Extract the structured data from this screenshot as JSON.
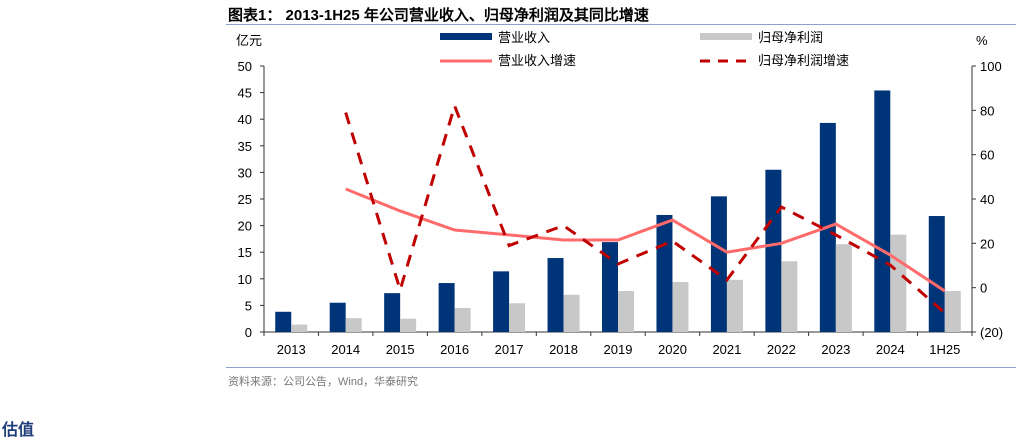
{
  "title": "图表1： 2013-1H25 年公司营业收入、归母净利润及其同比增速",
  "source": "资料来源：公司公告，Wind，华泰研究",
  "next_section": "估值",
  "chart_data": {
    "type": "bar",
    "categories": [
      "2013",
      "2014",
      "2015",
      "2016",
      "2017",
      "2018",
      "2019",
      "2020",
      "2021",
      "2022",
      "2023",
      "2024",
      "1H25"
    ],
    "left_axis": {
      "label": "亿元",
      "ylim": [
        0,
        50
      ],
      "ticks": [
        "0",
        "5",
        "10",
        "15",
        "20",
        "25",
        "30",
        "35",
        "40",
        "45",
        "50"
      ]
    },
    "right_axis": {
      "label": "%",
      "ylim": [
        -20,
        100
      ],
      "ticks": [
        "(20)",
        "0",
        "20",
        "40",
        "60",
        "80",
        "100"
      ]
    },
    "series": [
      {
        "name": "营业收入",
        "type": "bar",
        "axis": "left",
        "color": "#003478",
        "values": [
          3.8,
          5.5,
          7.3,
          9.2,
          11.4,
          13.9,
          16.9,
          22.0,
          25.5,
          30.5,
          39.3,
          45.4,
          21.8
        ]
      },
      {
        "name": "归母净利润",
        "type": "bar",
        "axis": "left",
        "color": "#c8c8c8",
        "values": [
          1.4,
          2.6,
          2.5,
          4.5,
          5.4,
          7.0,
          7.7,
          9.4,
          9.8,
          13.3,
          16.5,
          18.3,
          7.7
        ]
      },
      {
        "name": "营业收入增速",
        "type": "line",
        "axis": "right",
        "color": "#ff6b6b",
        "values": [
          null,
          44.5,
          34.6,
          26,
          23.8,
          21.5,
          21.5,
          30.5,
          16,
          20,
          28.7,
          14.7,
          -1.5
        ]
      },
      {
        "name": "归母净利润增速",
        "type": "line",
        "dashed": true,
        "axis": "right",
        "color": "#c00000",
        "values": [
          null,
          79,
          -1,
          82,
          19,
          28,
          10.7,
          21,
          3.5,
          36.4,
          23.8,
          10.2,
          -11.4
        ]
      }
    ],
    "legend": "top"
  }
}
